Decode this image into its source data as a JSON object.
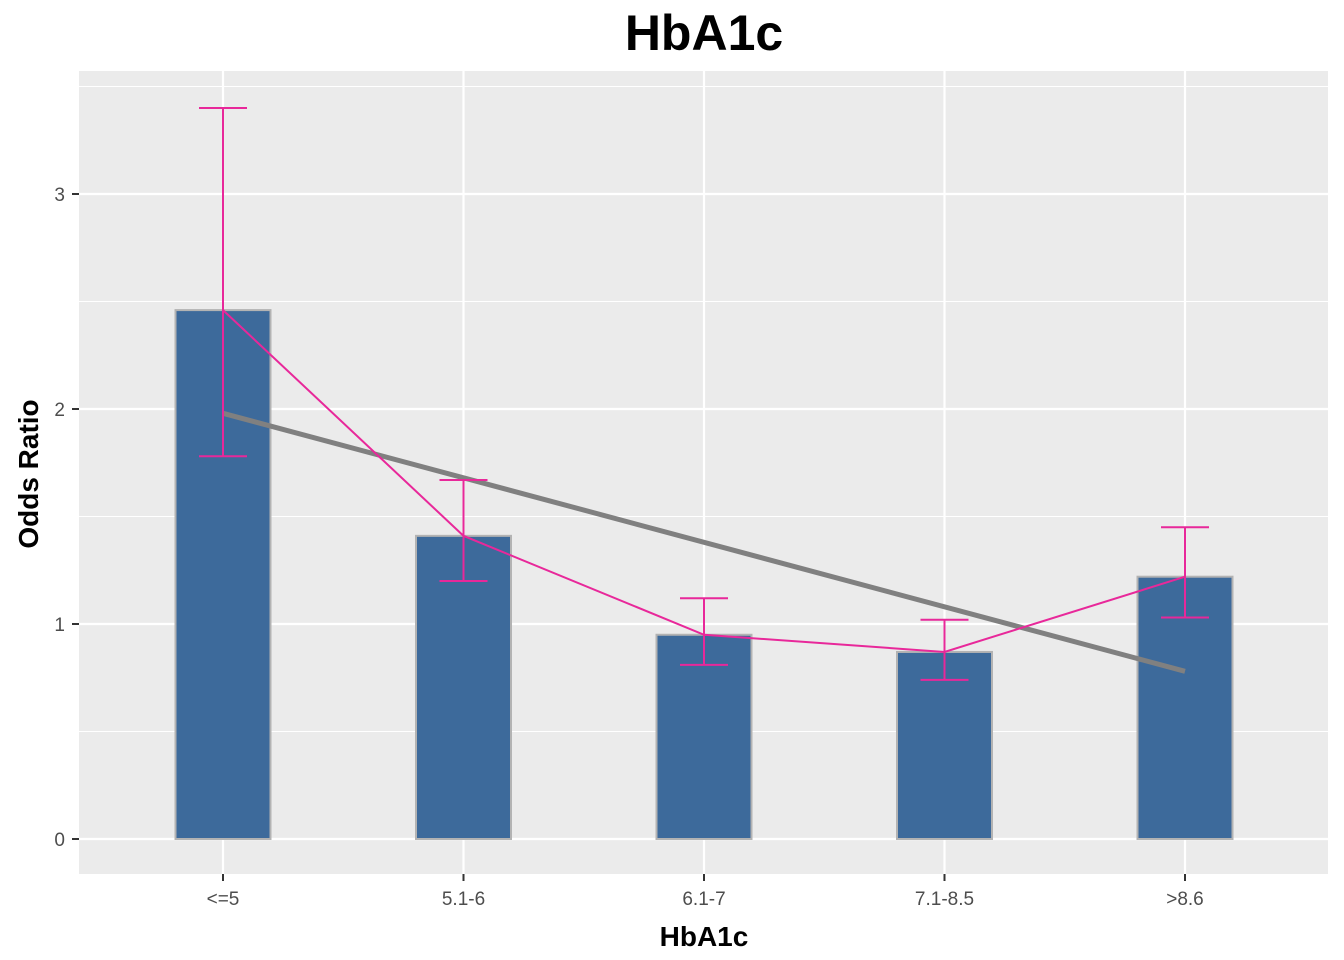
{
  "chart_data": {
    "type": "bar",
    "title": "HbA1c",
    "xlabel": "HbA1c",
    "ylabel": "Odds Ratio",
    "categories": [
      "<=5",
      "5.1-6",
      "6.1-7",
      "7.1-8.5",
      ">8.6"
    ],
    "values": [
      2.46,
      1.41,
      0.95,
      0.87,
      1.22
    ],
    "error_bars": {
      "lower": [
        1.78,
        1.2,
        0.81,
        0.74,
        1.03
      ],
      "upper": [
        3.4,
        1.67,
        1.12,
        1.02,
        1.45
      ]
    },
    "trend_line": {
      "start": 1.98,
      "end": 0.78
    },
    "ylim": [
      -0.17,
      3.52
    ],
    "yticks": [
      0,
      1,
      2,
      3
    ],
    "grid": true,
    "colors": {
      "bar": "#3d6a9b",
      "bar_outline": "#b3b3b3",
      "connector": "#e8289a",
      "trend": "#808080",
      "panel": "#ebebeb",
      "grid": "#ffffff"
    }
  }
}
